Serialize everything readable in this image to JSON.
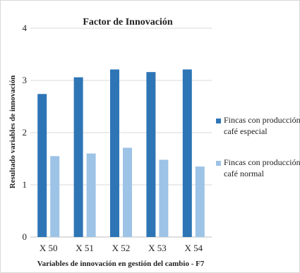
{
  "chart_data": {
    "type": "bar",
    "title": "Factor de Innovación",
    "xlabel": "Variables de innovación en gestión del cambio - F7",
    "ylabel": "Resultado variables de innovación",
    "ylim": [
      0,
      4
    ],
    "yticks": [
      "0",
      "1",
      "2",
      "3",
      "4"
    ],
    "grid": true,
    "legend_position": "right",
    "categories": [
      "X 50",
      "X 51",
      "X 52",
      "X 53",
      "X 54"
    ],
    "series": [
      {
        "name_lines": [
          "Fincas con producción para",
          "café especial"
        ],
        "color": "#2e75b6",
        "values": [
          2.74,
          3.06,
          3.21,
          3.16,
          3.21
        ]
      },
      {
        "name_lines": [
          "Fincas con producción de",
          "café normal"
        ],
        "color": "#9dc3e6",
        "values": [
          1.55,
          1.6,
          1.71,
          1.48,
          1.35
        ]
      }
    ]
  }
}
